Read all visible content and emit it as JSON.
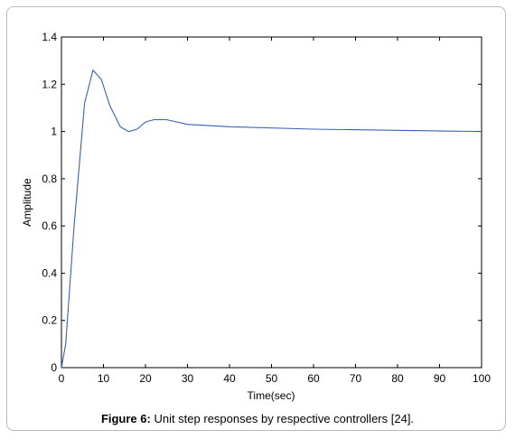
{
  "caption": {
    "label": "Figure 6:",
    "text": " Unit step responses by respective controllers [24]."
  },
  "chart_data": {
    "type": "line",
    "title": "",
    "xlabel": "Time(sec)",
    "ylabel": "Amplitude",
    "xlim": [
      0,
      100
    ],
    "ylim": [
      0,
      1.4
    ],
    "xticks": [
      0,
      10,
      20,
      30,
      40,
      50,
      60,
      70,
      80,
      90,
      100
    ],
    "xtick_labels": [
      "0",
      "10",
      "20",
      "30",
      "40",
      "50",
      "60",
      "70",
      "80",
      "90",
      "100"
    ],
    "yticks": [
      0,
      0.2,
      0.4,
      0.6,
      0.8,
      1,
      1.2,
      1.4
    ],
    "ytick_labels": [
      "0",
      "0.2",
      "0.4",
      "0.6",
      "0.8",
      "1",
      "1.2",
      "1.4"
    ],
    "grid": false,
    "series": [
      {
        "color": "#3b5fb6",
        "x": [
          0,
          1,
          3,
          5.5,
          7.5,
          9.5,
          11.5,
          14,
          16,
          18,
          20,
          22,
          25,
          30,
          40,
          60,
          80,
          100
        ],
        "y": [
          0,
          0.1,
          0.6,
          1.12,
          1.26,
          1.22,
          1.11,
          1.02,
          1.0,
          1.01,
          1.04,
          1.05,
          1.05,
          1.03,
          1.02,
          1.01,
          1.005,
          1.0
        ]
      }
    ]
  }
}
